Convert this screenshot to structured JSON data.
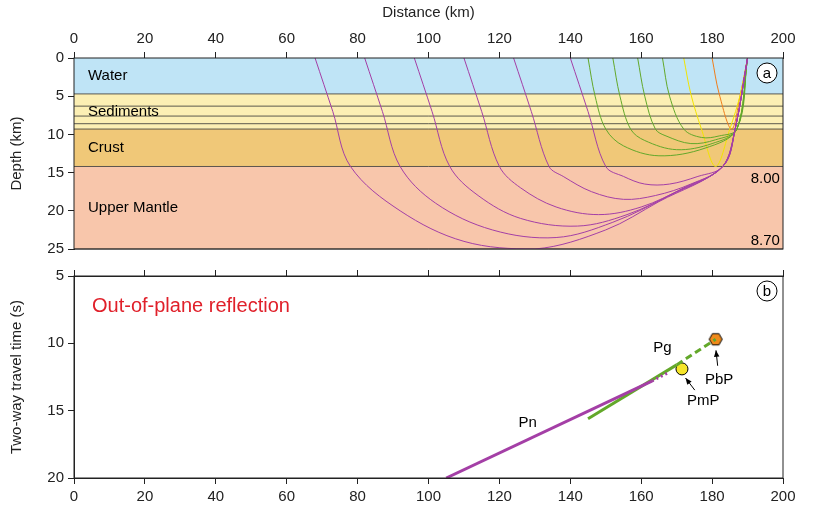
{
  "chart_data": [
    {
      "type": "ray_diagram",
      "panel": "a",
      "x_label": "Distance (km)",
      "y_label": "Depth (km)",
      "xlim": [
        0,
        200
      ],
      "xticks": [
        0,
        20,
        40,
        60,
        80,
        100,
        120,
        140,
        160,
        180,
        200
      ],
      "ylim": [
        0,
        25
      ],
      "yticks": [
        0,
        5,
        10,
        15,
        20,
        25
      ],
      "layers": [
        {
          "label": "Water",
          "top": 0,
          "bottom": 4.7,
          "color": "#bfe4f6"
        },
        {
          "label": "Sediments",
          "top": 4.7,
          "bottom": 9.3,
          "color": "#fcefb4",
          "internal": [
            6.3,
            7.6,
            8.6
          ]
        },
        {
          "label": "Crust",
          "top": 9.3,
          "bottom": 14.2,
          "color": "#f0c878"
        },
        {
          "label": "Upper Mantle",
          "top": 14.2,
          "bottom": 25,
          "color": "#f8c6ab"
        }
      ],
      "annotations": [
        {
          "text": "8.00",
          "x": 195,
          "y": 15.8
        },
        {
          "text": "8.70",
          "x": 195,
          "y": 23.9
        }
      ],
      "series": [
        {
          "color": "#a43fa6",
          "rays": [
            {
              "x": [
                190,
                186.5,
                183,
                165,
                150,
                130,
                110,
                92,
                78,
                73,
                68
              ],
              "y": [
                0,
                9.3,
                14.2,
                18.8,
                22.5,
                25,
                24,
                20,
                14.2,
                7,
                0
              ]
            },
            {
              "x": [
                190,
                186.5,
                183,
                168,
                152,
                136,
                118,
                102,
                92,
                87,
                82
              ],
              "y": [
                0,
                9.3,
                14.2,
                18,
                21.5,
                23.5,
                22.5,
                19,
                14.2,
                7,
                0
              ]
            },
            {
              "x": [
                190,
                186.5,
                183,
                170,
                156,
                142,
                126,
                114,
                106,
                101,
                96
              ],
              "y": [
                0,
                9.3,
                14.2,
                17.5,
                20.5,
                22,
                21,
                18,
                14.2,
                7,
                0
              ]
            },
            {
              "x": [
                190,
                186.5,
                183,
                172,
                160,
                148,
                136,
                126,
                120,
                115,
                110
              ],
              "y": [
                0,
                9.3,
                14.2,
                17,
                19.5,
                20.5,
                19.5,
                17,
                14.2,
                7,
                0
              ]
            },
            {
              "x": [
                190,
                186.5,
                183,
                174,
                164,
                155,
                146,
                138,
                134,
                129,
                124
              ],
              "y": [
                0,
                9.3,
                14.2,
                16.5,
                18,
                18.5,
                17.5,
                15.5,
                14.2,
                7,
                0
              ]
            },
            {
              "x": [
                190,
                186.5,
                183,
                176,
                168,
                161,
                155,
                150,
                145,
                140
              ],
              "y": [
                0,
                9.3,
                14.2,
                15.5,
                16.5,
                16.5,
                15.5,
                14.2,
                7,
                0
              ]
            }
          ]
        },
        {
          "color": "#63a82a",
          "rays": [
            {
              "x": [
                190,
                187,
                178,
                165,
                155,
                150,
                147,
                145
              ],
              "y": [
                0,
                9.3,
                11.8,
                12.8,
                11.5,
                9.3,
                5,
                0
              ]
            },
            {
              "x": [
                190,
                187,
                180,
                170,
                161,
                157,
                154,
                152
              ],
              "y": [
                0,
                9.3,
                11.2,
                12,
                10.8,
                9.3,
                5,
                0
              ]
            },
            {
              "x": [
                190,
                187,
                181,
                174,
                167,
                164,
                161,
                159
              ],
              "y": [
                0,
                9.3,
                10.7,
                11.2,
                10.2,
                9.3,
                5,
                0
              ]
            },
            {
              "x": [
                190,
                187,
                182,
                177,
                172,
                168,
                166
              ],
              "y": [
                0,
                9.3,
                10.2,
                10.4,
                9.3,
                5,
                0
              ]
            }
          ]
        },
        {
          "color": "#f2e400",
          "rays": [
            {
              "x": [
                172,
                174,
                177,
                181,
                185,
                188,
                190
              ],
              "y": [
                0,
                4.7,
                9.3,
                14.2,
                9.3,
                4.7,
                0
              ]
            }
          ]
        },
        {
          "color": "#f07d1a",
          "rays": [
            {
              "x": [
                180,
                182,
                185.5,
                188,
                190
              ],
              "y": [
                0,
                4.7,
                9.3,
                4.7,
                0
              ]
            }
          ]
        }
      ]
    },
    {
      "type": "line",
      "panel": "b",
      "title": "Out-of-plane reflection",
      "y_label": "Two-way travel time (s)",
      "xlim": [
        0,
        200
      ],
      "xticks": [
        0,
        20,
        40,
        60,
        80,
        100,
        120,
        140,
        160,
        180,
        200
      ],
      "ylim": [
        5,
        20
      ],
      "yticks": [
        5,
        10,
        15,
        20
      ],
      "series": [
        {
          "color": "#a43fa6",
          "x": [
            105,
            163
          ],
          "y": [
            20,
            12.8
          ],
          "line_style": "solid"
        },
        {
          "color": "#a43fa6",
          "x": [
            163,
            167.5
          ],
          "y": [
            12.8,
            12.2
          ],
          "line_style": "dotted"
        },
        {
          "color": "#63a82a",
          "x": [
            145,
            170
          ],
          "y": [
            15.6,
            11.6
          ],
          "line_style": "solid"
        },
        {
          "color": "#63a82a",
          "x": [
            170,
            181
          ],
          "y": [
            11.6,
            9.7
          ],
          "line_style": "dashed"
        },
        {
          "color": "#f5e52a",
          "x": [
            171.5
          ],
          "y": [
            11.9
          ],
          "marker": "circle"
        },
        {
          "color": "#f08a1a",
          "x": [
            181
          ],
          "y": [
            9.7
          ],
          "marker": "hexagon"
        }
      ],
      "annotations": [
        {
          "text": "Pn",
          "x": 128,
          "y": 15.9
        },
        {
          "text": "Pg",
          "x": 166,
          "y": 10.3
        },
        {
          "text": "PmP",
          "x": 177.5,
          "y": 14.3,
          "arrow_to": [
            172,
            12.4
          ]
        },
        {
          "text": "PbP",
          "x": 182,
          "y": 12.7,
          "arrow_to": [
            181,
            10.3
          ]
        }
      ]
    }
  ]
}
